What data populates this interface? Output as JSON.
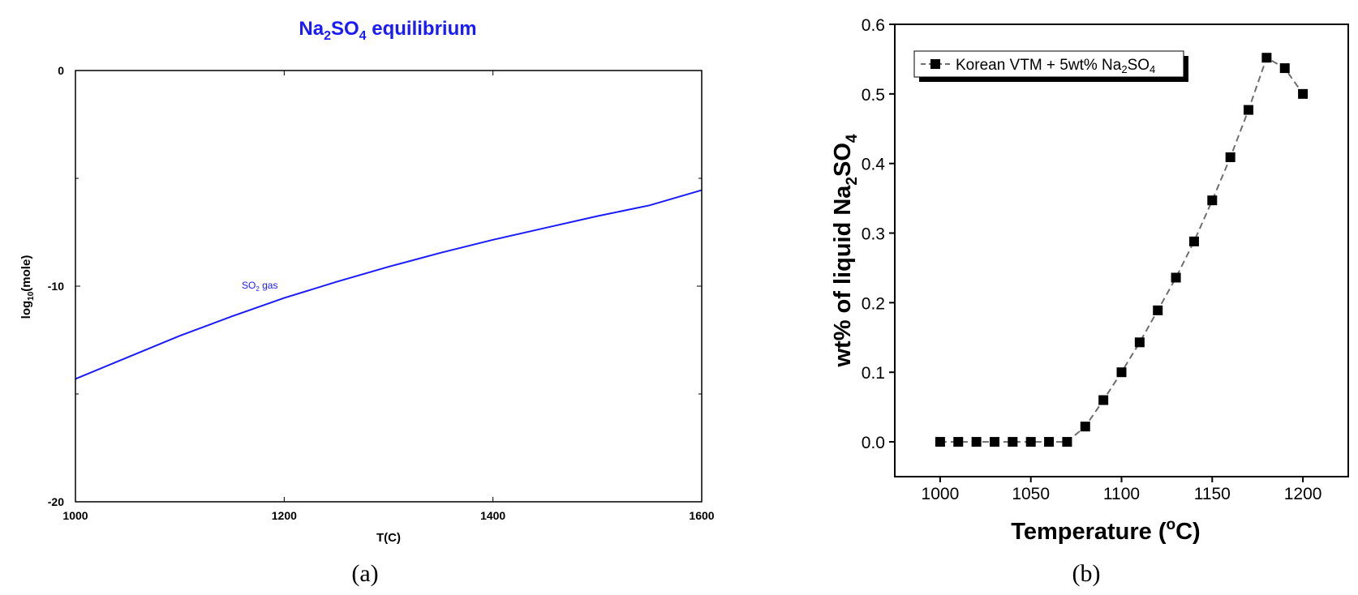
{
  "chart_data": [
    {
      "type": "line",
      "title": {
        "main": "Na",
        "sub1": "2",
        "mid": "SO",
        "sub2": "4",
        "tail": " equilibrium"
      },
      "title_color": "#1a1aff",
      "xlabel": "T(C)",
      "ylabel": {
        "pre": "log",
        "sub": "10",
        "post": "(mole)"
      },
      "xlim": [
        1000,
        1600
      ],
      "ylim": [
        -20,
        0
      ],
      "xticks": [
        1000,
        1200,
        1400,
        1600
      ],
      "xtick_labels": [
        "1000",
        "1200",
        "1400",
        "1600"
      ],
      "yticks": [
        0,
        -10,
        -20
      ],
      "ytick_labels": [
        "0",
        "-10",
        "-20"
      ],
      "minor_yticks": [
        -5,
        -15
      ],
      "grid": false,
      "series": [
        {
          "name": {
            "pre": "SO",
            "sub": "2",
            "post": " gas"
          },
          "color": "#1a1aff",
          "x": [
            1000,
            1050,
            1100,
            1150,
            1200,
            1250,
            1300,
            1350,
            1400,
            1450,
            1500,
            1550,
            1600
          ],
          "y": [
            -14.3,
            -13.3,
            -12.3,
            -11.4,
            -10.55,
            -9.8,
            -9.1,
            -8.45,
            -7.85,
            -7.3,
            -6.75,
            -6.25,
            -5.55
          ]
        }
      ],
      "caption": "(a)"
    },
    {
      "type": "scatter",
      "xlabel": {
        "pre": "Temperature (",
        "sup": "o",
        "post": "C)"
      },
      "ylabel": {
        "pre": "wt% of liquid Na",
        "sub1": "2",
        "mid": "SO",
        "sub2": "4"
      },
      "xlim": [
        975,
        1225
      ],
      "ylim": [
        -0.05,
        0.6
      ],
      "xticks": [
        1000,
        1050,
        1100,
        1150,
        1200
      ],
      "xtick_labels": [
        "1000",
        "1050",
        "1100",
        "1150",
        "1200"
      ],
      "yticks": [
        0.0,
        0.1,
        0.2,
        0.3,
        0.4,
        0.5,
        0.6
      ],
      "ytick_labels": [
        "0.0",
        "0.1",
        "0.2",
        "0.3",
        "0.4",
        "0.5",
        "0.6"
      ],
      "grid": false,
      "legend_position": "top-left",
      "series": [
        {
          "name": {
            "pre": "Korean VTM + 5wt% Na",
            "sub1": "2",
            "mid": "SO",
            "sub2": "4"
          },
          "marker": "square",
          "line_style": "dashed",
          "marker_color": "#000000",
          "line_color": "#6e6e6e",
          "x": [
            1000,
            1010,
            1020,
            1030,
            1040,
            1050,
            1060,
            1070,
            1080,
            1090,
            1100,
            1110,
            1120,
            1130,
            1140,
            1150,
            1160,
            1170,
            1180,
            1190,
            1200
          ],
          "y": [
            0.0,
            0.0,
            0.0,
            0.0,
            0.0,
            0.0,
            0.0,
            0.0,
            0.022,
            0.06,
            0.1,
            0.143,
            0.189,
            0.236,
            0.288,
            0.347,
            0.409,
            0.477,
            0.552,
            0.537,
            0.5
          ]
        }
      ],
      "caption": "(b)"
    }
  ]
}
